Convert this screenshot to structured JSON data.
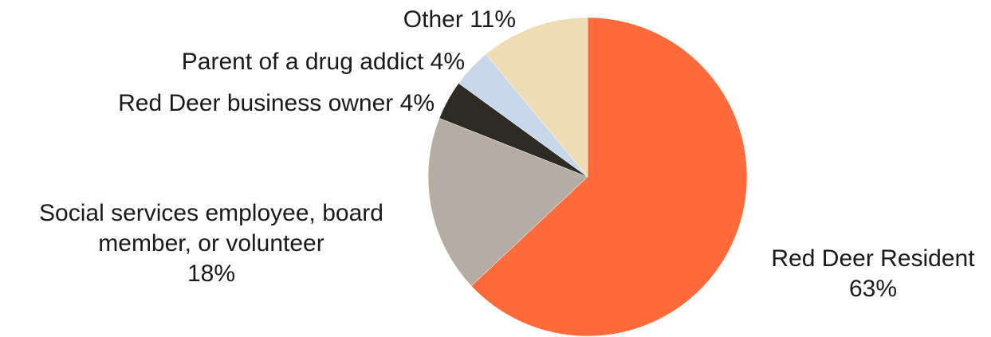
{
  "chart_data": {
    "type": "pie",
    "categories": [
      "Red Deer Resident",
      "Social services employee, board member, or volunteer",
      "Red Deer business owner",
      "Parent of a drug addict",
      "Other"
    ],
    "values": [
      63,
      18,
      4,
      4,
      11
    ],
    "value_labels": [
      "63%",
      "18%",
      "4%",
      "4%",
      "11%"
    ],
    "colors": [
      "#ff6b3a",
      "#b5ada4",
      "#2e2a26",
      "#c8d8ea",
      "#f0dcb4"
    ]
  }
}
